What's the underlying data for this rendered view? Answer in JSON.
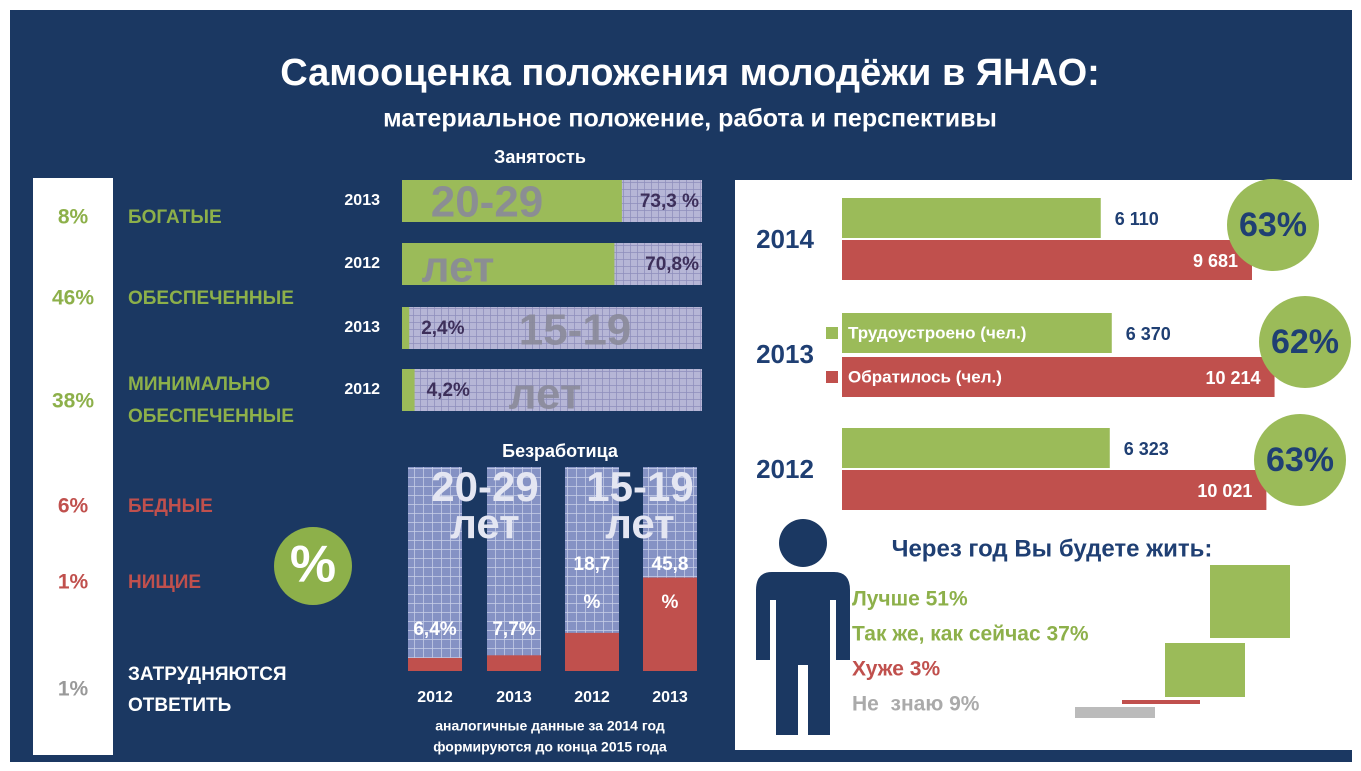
{
  "header": {
    "title": "Самооценка положения молодёжи в ЯНАО:",
    "subtitle": "материальное положение, работа и перспективы"
  },
  "status": {
    "items": [
      {
        "pct": "8%",
        "label": [
          "БОГАТЫЕ"
        ],
        "color": "#8db04a"
      },
      {
        "pct": "46%",
        "label": [
          "ОБЕСПЕЧЕННЫЕ"
        ],
        "color": "#8db04a"
      },
      {
        "pct": "38%",
        "label": [
          "МИНИМАЛЬНО",
          "ОБЕСПЕЧЕННЫЕ"
        ],
        "color": "#8db04a"
      },
      {
        "pct": "6%",
        "label": [
          "БЕДНЫЕ"
        ],
        "color": "#c0504d"
      },
      {
        "pct": "1%",
        "label": [
          "НИЩИЕ"
        ],
        "color": "#c0504d"
      },
      {
        "pct": "1%",
        "label": [
          "ЗАТРУДНЯЮТСЯ",
          "ОТВЕТИТЬ"
        ],
        "color": "#ffffff",
        "pct_color": "#999999"
      }
    ],
    "badge": "%"
  },
  "employment": {
    "title": "Занятость",
    "groups": [
      {
        "age": "20-29",
        "unit": "лет",
        "rows": [
          {
            "year": "2013",
            "value": 73.3,
            "label": "73,3 %"
          },
          {
            "year": "2012",
            "value": 70.8,
            "label": "70,8%"
          }
        ]
      },
      {
        "age": "15-19",
        "unit": "лет",
        "rows": [
          {
            "year": "2013",
            "value": 2.4,
            "label": "2,4%"
          },
          {
            "year": "2012",
            "value": 4.2,
            "label": "4,2%"
          }
        ]
      }
    ]
  },
  "unemployment": {
    "title": "Безработица",
    "groups": [
      {
        "age": "20-29",
        "unit": "лет",
        "bars": [
          {
            "year": "2012",
            "value": 6.4,
            "label": [
              "6,4%"
            ]
          },
          {
            "year": "2013",
            "value": 7.7,
            "label": [
              "7,7%"
            ]
          }
        ]
      },
      {
        "age": "15-19",
        "unit": "лет",
        "bars": [
          {
            "year": "2012",
            "value": 18.7,
            "label": [
              "18,7",
              "%"
            ]
          },
          {
            "year": "2013",
            "value": 45.8,
            "label": [
              "45,8",
              "%"
            ]
          }
        ]
      }
    ],
    "note": [
      "аналогичные данные за 2014 год",
      "формируются до конца 2015 года"
    ]
  },
  "jobs": {
    "legend": [
      {
        "name": "Трудоустроено (чел.)",
        "color": "#9bbb59"
      },
      {
        "name": "Обратилось (чел.)",
        "color": "#c0504d"
      }
    ],
    "rows": [
      {
        "year": "2014",
        "employed": 6110,
        "employed_label": "6 110",
        "applied": 9681,
        "applied_label": "9 681",
        "share": "63%"
      },
      {
        "year": "2013",
        "employed": 6370,
        "employed_label": "6 370",
        "applied": 10214,
        "applied_label": "10 214",
        "share": "62%"
      },
      {
        "year": "2012",
        "employed": 6323,
        "employed_label": "6 323",
        "applied": 10021,
        "applied_label": "10 021",
        "share": "63%"
      }
    ]
  },
  "survey": {
    "title": "Через год Вы будете жить:",
    "items": [
      {
        "text": "Лучше 51%",
        "color": "#8db04a"
      },
      {
        "text": "Так же, как сейчас 37%",
        "color": "#8db04a"
      },
      {
        "text": "Хуже 3%",
        "color": "#c0504d"
      },
      {
        "text": "Не  знаю 9%",
        "color": "#aaaaaa"
      }
    ]
  }
}
